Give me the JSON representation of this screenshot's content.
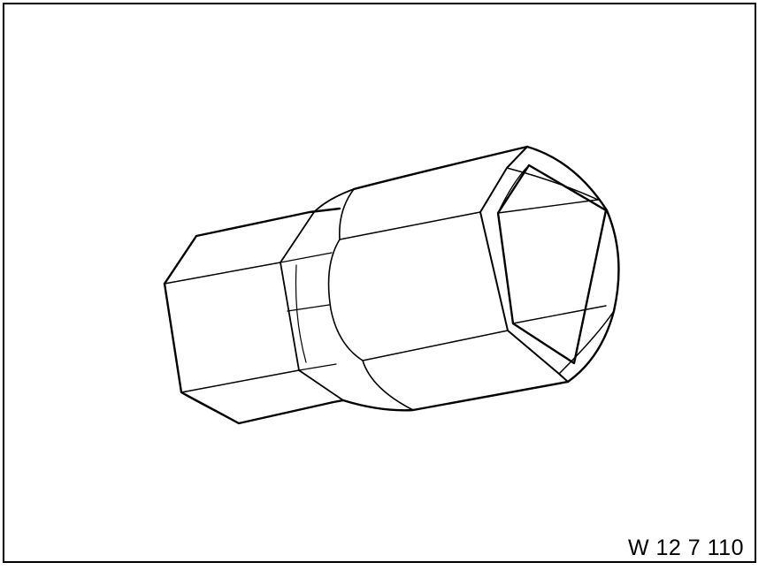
{
  "figure": {
    "code": "W 12 7 110",
    "line_color": "#000000",
    "background_color": "#ffffff"
  },
  "components": {
    "outline": "outline-frame",
    "tool": "hex-socket-adapter-icon"
  }
}
